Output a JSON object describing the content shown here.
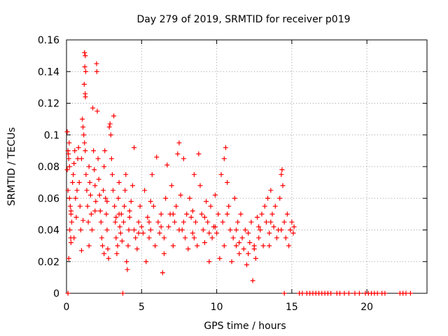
{
  "chart_data": {
    "type": "scatter",
    "title": "Day 279 of 2019, SRMTID for receiver p019",
    "xlabel": "GPS time / hours",
    "ylabel": "SRMTID / TECUs",
    "xlim": [
      0,
      24
    ],
    "ylim": [
      0,
      0.16
    ],
    "xticks": [
      0,
      5,
      10,
      15,
      20
    ],
    "xtick_labels": [
      "0",
      "5",
      "10",
      "15",
      "20"
    ],
    "yticks": [
      0,
      0.02,
      0.04,
      0.06,
      0.08,
      0.1,
      0.12,
      0.14,
      0.16
    ],
    "ytick_labels": [
      "0",
      "0.02",
      "0.04",
      "0.06",
      "0.08",
      "0.1",
      "0.12",
      "0.14",
      "0.16"
    ],
    "grid": true,
    "marker": "+",
    "color": "#ff0000",
    "series": [
      {
        "name": "SRMTID",
        "points": [
          [
            0.05,
            0.102
          ],
          [
            0.1,
            0.09
          ],
          [
            0.15,
            0.085
          ],
          [
            0.2,
            0.08
          ],
          [
            0.05,
            0.078
          ],
          [
            0.12,
            0.088
          ],
          [
            0.18,
            0.095
          ],
          [
            0.1,
            0.065
          ],
          [
            0.2,
            0.06
          ],
          [
            0.25,
            0.055
          ],
          [
            0.3,
            0.05
          ],
          [
            0.35,
            0.045
          ],
          [
            0.22,
            0.04
          ],
          [
            0.28,
            0.035
          ],
          [
            0.15,
            0.022
          ],
          [
            0.3,
            0.032
          ],
          [
            0.4,
            0.07
          ],
          [
            0.45,
            0.075
          ],
          [
            0.5,
            0.082
          ],
          [
            0.55,
            0.09
          ],
          [
            0.6,
            0.06
          ],
          [
            0.65,
            0.048
          ],
          [
            0.7,
            0.065
          ],
          [
            0.75,
            0.085
          ],
          [
            0.8,
            0.092
          ],
          [
            0.85,
            0.07
          ],
          [
            0.9,
            0.055
          ],
          [
            0.95,
            0.04
          ],
          [
            1.0,
            0.027
          ],
          [
            1.0,
            0.085
          ],
          [
            1.05,
            0.11
          ],
          [
            1.1,
            0.105
          ],
          [
            1.15,
            0.1
          ],
          [
            1.2,
            0.095
          ],
          [
            1.25,
            0.09
          ],
          [
            1.2,
            0.152
          ],
          [
            1.25,
            0.15
          ],
          [
            1.22,
            0.143
          ],
          [
            1.28,
            0.14
          ],
          [
            1.18,
            0.132
          ],
          [
            1.24,
            0.126
          ],
          [
            1.26,
            0.124
          ],
          [
            1.3,
            0.075
          ],
          [
            1.35,
            0.065
          ],
          [
            1.4,
            0.055
          ],
          [
            1.45,
            0.045
          ],
          [
            1.5,
            0.08
          ],
          [
            1.55,
            0.07
          ],
          [
            1.6,
            0.062
          ],
          [
            1.65,
            0.05
          ],
          [
            1.7,
            0.04
          ],
          [
            1.75,
            0.117
          ],
          [
            1.8,
            0.09
          ],
          [
            1.85,
            0.078
          ],
          [
            1.9,
            0.068
          ],
          [
            1.95,
            0.058
          ],
          [
            2.0,
            0.145
          ],
          [
            2.02,
            0.14
          ],
          [
            2.05,
            0.115
          ],
          [
            2.1,
            0.085
          ],
          [
            2.15,
            0.072
          ],
          [
            2.2,
            0.062
          ],
          [
            2.25,
            0.052
          ],
          [
            2.3,
            0.045
          ],
          [
            2.35,
            0.035
          ],
          [
            2.4,
            0.03
          ],
          [
            2.45,
            0.065
          ],
          [
            2.5,
            0.08
          ],
          [
            2.55,
            0.09
          ],
          [
            2.6,
            0.06
          ],
          [
            2.65,
            0.05
          ],
          [
            2.7,
            0.04
          ],
          [
            2.75,
            0.028
          ],
          [
            2.8,
            0.022
          ],
          [
            2.85,
            0.105
          ],
          [
            2.9,
            0.107
          ],
          [
            2.95,
            0.1
          ],
          [
            3.0,
            0.085
          ],
          [
            3.05,
            0.075
          ],
          [
            3.1,
            0.065
          ],
          [
            3.15,
            0.112
          ],
          [
            3.2,
            0.055
          ],
          [
            3.25,
            0.045
          ],
          [
            3.3,
            0.035
          ],
          [
            3.35,
            0.025
          ],
          [
            3.4,
            0.03
          ],
          [
            3.45,
            0.06
          ],
          [
            3.5,
            0.07
          ],
          [
            3.55,
            0.042
          ],
          [
            3.6,
            0.038
          ],
          [
            3.65,
            0.05
          ],
          [
            3.7,
            0.033
          ],
          [
            3.75,
            0.0
          ],
          [
            3.8,
            0.045
          ],
          [
            3.85,
            0.055
          ],
          [
            3.9,
            0.065
          ],
          [
            3.95,
            0.075
          ],
          [
            4.0,
            0.02
          ],
          [
            4.05,
            0.015
          ],
          [
            4.1,
            0.03
          ],
          [
            4.15,
            0.04
          ],
          [
            4.2,
            0.048
          ],
          [
            4.3,
            0.058
          ],
          [
            4.4,
            0.068
          ],
          [
            4.5,
            0.092
          ],
          [
            4.6,
            0.035
          ],
          [
            4.7,
            0.028
          ],
          [
            4.8,
            0.045
          ],
          [
            4.9,
            0.055
          ],
          [
            5.0,
            0.042
          ],
          [
            5.1,
            0.038
          ],
          [
            5.2,
            0.065
          ],
          [
            5.3,
            0.02
          ],
          [
            5.4,
            0.048
          ],
          [
            5.5,
            0.035
          ],
          [
            5.6,
            0.04
          ],
          [
            5.7,
            0.075
          ],
          [
            5.8,
            0.055
          ],
          [
            5.9,
            0.03
          ],
          [
            6.0,
            0.086
          ],
          [
            6.1,
            0.045
          ],
          [
            6.2,
            0.038
          ],
          [
            6.3,
            0.05
          ],
          [
            6.4,
            0.013
          ],
          [
            6.5,
            0.025
          ],
          [
            6.6,
            0.06
          ],
          [
            6.7,
            0.081
          ],
          [
            6.8,
            0.042
          ],
          [
            6.9,
            0.05
          ],
          [
            7.0,
            0.068
          ],
          [
            7.1,
            0.03
          ],
          [
            7.2,
            0.045
          ],
          [
            7.3,
            0.055
          ],
          [
            7.4,
            0.088
          ],
          [
            7.5,
            0.095
          ],
          [
            7.6,
            0.062
          ],
          [
            7.7,
            0.04
          ],
          [
            7.8,
            0.085
          ],
          [
            7.9,
            0.035
          ],
          [
            8.0,
            0.05
          ],
          [
            8.1,
            0.028
          ],
          [
            8.2,
            0.06
          ],
          [
            8.3,
            0.048
          ],
          [
            8.4,
            0.038
          ],
          [
            8.5,
            0.075
          ],
          [
            8.6,
            0.045
          ],
          [
            8.7,
            0.03
          ],
          [
            8.8,
            0.088
          ],
          [
            8.9,
            0.068
          ],
          [
            9.0,
            0.05
          ],
          [
            9.1,
            0.04
          ],
          [
            9.2,
            0.032
          ],
          [
            9.3,
            0.058
          ],
          [
            9.4,
            0.045
          ],
          [
            9.5,
            0.02
          ],
          [
            9.6,
            0.055
          ],
          [
            9.7,
            0.035
          ],
          [
            9.8,
            0.042
          ],
          [
            9.9,
            0.062
          ],
          [
            10.0,
            0.038
          ],
          [
            10.1,
            0.05
          ],
          [
            10.2,
            0.022
          ],
          [
            10.3,
            0.075
          ],
          [
            10.4,
            0.045
          ],
          [
            10.5,
            0.085
          ],
          [
            10.6,
            0.092
          ],
          [
            10.7,
            0.07
          ],
          [
            10.8,
            0.055
          ],
          [
            10.9,
            0.04
          ],
          [
            11.0,
            0.02
          ],
          [
            11.1,
            0.035
          ],
          [
            11.2,
            0.06
          ],
          [
            11.3,
            0.03
          ],
          [
            11.4,
            0.045
          ],
          [
            11.5,
            0.025
          ],
          [
            11.6,
            0.05
          ],
          [
            11.7,
            0.035
          ],
          [
            11.8,
            0.028
          ],
          [
            11.9,
            0.04
          ],
          [
            12.0,
            0.018
          ],
          [
            12.1,
            0.025
          ],
          [
            12.2,
            0.032
          ],
          [
            12.3,
            0.045
          ],
          [
            12.4,
            0.008
          ],
          [
            12.5,
            0.03
          ],
          [
            12.6,
            0.022
          ],
          [
            12.7,
            0.048
          ],
          [
            12.8,
            0.035
          ],
          [
            12.9,
            0.04
          ],
          [
            13.0,
            0.05
          ],
          [
            13.1,
            0.03
          ],
          [
            13.2,
            0.055
          ],
          [
            13.3,
            0.045
          ],
          [
            13.4,
            0.06
          ],
          [
            13.5,
            0.038
          ],
          [
            13.6,
            0.065
          ],
          [
            13.7,
            0.05
          ],
          [
            13.8,
            0.042
          ],
          [
            13.9,
            0.055
          ],
          [
            14.0,
            0.035
          ],
          [
            14.1,
            0.04
          ],
          [
            14.2,
            0.06
          ],
          [
            14.3,
            0.075
          ],
          [
            14.35,
            0.078
          ],
          [
            14.4,
            0.068
          ],
          [
            14.5,
            0.045
          ],
          [
            14.6,
            0.035
          ],
          [
            14.7,
            0.05
          ],
          [
            14.8,
            0.03
          ],
          [
            14.9,
            0.04
          ],
          [
            15.0,
            0.045
          ],
          [
            15.1,
            0.038
          ],
          [
            15.15,
            0.042
          ],
          [
            0.5,
            0.035
          ],
          [
            1.5,
            0.03
          ],
          [
            2.5,
            0.025
          ],
          [
            3.5,
            0.05
          ],
          [
            4.5,
            0.04
          ],
          [
            5.5,
            0.045
          ],
          [
            6.5,
            0.035
          ],
          [
            7.5,
            0.04
          ],
          [
            8.5,
            0.035
          ],
          [
            9.5,
            0.038
          ],
          [
            10.5,
            0.03
          ],
          [
            11.5,
            0.032
          ],
          [
            12.5,
            0.028
          ],
          [
            13.5,
            0.03
          ],
          [
            0.3,
            0.052
          ],
          [
            1.1,
            0.046
          ],
          [
            1.9,
            0.052
          ],
          [
            2.7,
            0.058
          ],
          [
            3.3,
            0.048
          ],
          [
            4.2,
            0.052
          ],
          [
            4.8,
            0.038
          ],
          [
            5.6,
            0.058
          ],
          [
            6.3,
            0.042
          ],
          [
            7.1,
            0.05
          ],
          [
            7.8,
            0.045
          ],
          [
            8.4,
            0.052
          ],
          [
            9.2,
            0.048
          ],
          [
            9.9,
            0.042
          ],
          [
            10.7,
            0.05
          ],
          [
            11.3,
            0.04
          ],
          [
            12.1,
            0.038
          ],
          [
            12.8,
            0.042
          ],
          [
            13.6,
            0.045
          ],
          [
            14.3,
            0.04
          ],
          [
            14.5,
            0.0
          ],
          [
            15.5,
            0.0
          ],
          [
            15.7,
            0.0
          ],
          [
            16.0,
            0.0
          ],
          [
            16.2,
            0.0
          ],
          [
            16.4,
            0.0
          ],
          [
            16.6,
            0.0
          ],
          [
            16.8,
            0.0
          ],
          [
            17.0,
            0.0
          ],
          [
            17.2,
            0.0
          ],
          [
            17.4,
            0.0
          ],
          [
            17.6,
            0.0
          ],
          [
            18.0,
            0.0
          ],
          [
            18.2,
            0.0
          ],
          [
            18.5,
            0.0
          ],
          [
            18.8,
            0.0
          ],
          [
            19.2,
            0.0
          ],
          [
            19.5,
            0.0
          ],
          [
            19.9,
            0.0
          ],
          [
            20.1,
            0.0
          ],
          [
            20.3,
            0.0
          ],
          [
            20.5,
            0.0
          ],
          [
            20.7,
            0.0
          ],
          [
            21.0,
            0.0
          ],
          [
            21.2,
            0.0
          ],
          [
            22.2,
            0.0
          ],
          [
            22.4,
            0.0
          ],
          [
            22.6,
            0.0
          ],
          [
            22.9,
            0.0
          ],
          [
            0.1,
            0.0
          ]
        ]
      }
    ]
  }
}
